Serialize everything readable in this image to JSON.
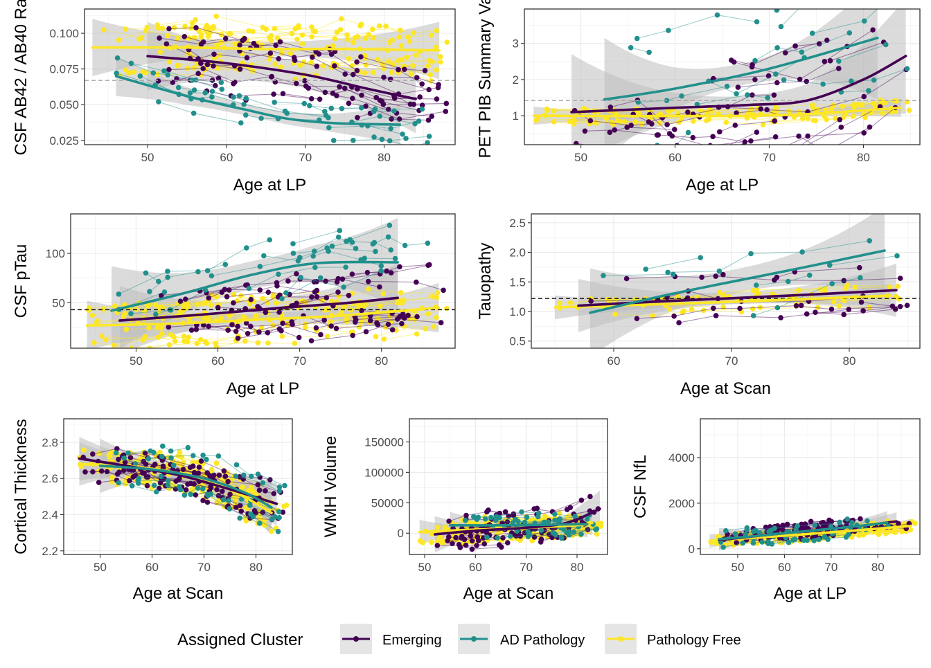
{
  "colors": {
    "Emerging": "#440154",
    "AD Pathology": "#21908C",
    "Pathology Free": "#FDE725",
    "grid": "#ebebeb",
    "ribbon": "#bdbdbd"
  },
  "legend": {
    "title": "Assigned Cluster",
    "items": [
      "Emerging",
      "AD Pathology",
      "Pathology Free"
    ]
  },
  "chart_data": [
    {
      "type": "line",
      "id": "p1",
      "xlabel": "Age at LP",
      "ylabel": "CSF AB42 / AB40 Ra",
      "xlim": [
        42,
        89
      ],
      "ylim": [
        0.022,
        0.117
      ],
      "xticks": [
        50,
        60,
        70,
        80
      ],
      "yticks": [
        0.025,
        0.05,
        0.075,
        0.1
      ],
      "ytick_labels": [
        "0.025",
        "0.050",
        "0.075",
        "0.100"
      ],
      "threshold": 0.067,
      "threshold_style": "grey-dashed",
      "series": [
        {
          "name": "Pathology Free",
          "trend": [
            [
              43,
              0.09
            ],
            [
              55,
              0.09
            ],
            [
              65,
              0.089
            ],
            [
              75,
              0.089
            ],
            [
              87,
              0.088
            ]
          ],
          "spread": [
            0.005,
            0.02
          ]
        },
        {
          "name": "Emerging",
          "trend": [
            [
              50,
              0.084
            ],
            [
              60,
              0.079
            ],
            [
              70,
              0.071
            ],
            [
              78,
              0.061
            ],
            [
              84,
              0.054
            ]
          ],
          "spread": [
            0.009,
            0.024
          ]
        },
        {
          "name": "AD Pathology",
          "trend": [
            [
              46,
              0.07
            ],
            [
              55,
              0.056
            ],
            [
              62,
              0.047
            ],
            [
              68,
              0.04
            ],
            [
              74,
              0.037
            ],
            [
              82,
              0.036
            ]
          ],
          "spread": [
            0.004,
            0.014
          ]
        }
      ]
    },
    {
      "type": "line",
      "id": "p2",
      "xlabel": "Age at LP",
      "ylabel": "PET PIB Summary Va",
      "xlim": [
        44,
        86
      ],
      "ylim": [
        0.2,
        3.95
      ],
      "xticks": [
        50,
        60,
        70,
        80
      ],
      "yticks": [
        1,
        2,
        3
      ],
      "ytick_labels": [
        "1",
        "2",
        "3"
      ],
      "threshold": 1.42,
      "threshold_style": "grey-dashed",
      "series": [
        {
          "name": "Pathology Free",
          "trend": [
            [
              45,
              1.0
            ],
            [
              60,
              0.99
            ],
            [
              72,
              1.02
            ],
            [
              84,
              1.22
            ]
          ],
          "spread": [
            0.04,
            0.25
          ]
        },
        {
          "name": "Emerging",
          "trend": [
            [
              49,
              1.1
            ],
            [
              60,
              1.22
            ],
            [
              68,
              1.3
            ],
            [
              74,
              1.42
            ],
            [
              80,
              2.0
            ],
            [
              84.5,
              2.65
            ]
          ],
          "spread": [
            0.25,
            1.6
          ]
        },
        {
          "name": "AD Pathology",
          "trend": [
            [
              52.5,
              1.45
            ],
            [
              60,
              1.75
            ],
            [
              70,
              2.3
            ],
            [
              81.5,
              3.15
            ]
          ],
          "spread": [
            0.3,
            1.7
          ]
        }
      ]
    },
    {
      "type": "line",
      "id": "p3",
      "xlabel": "Age at LP",
      "ylabel": "CSF pTau",
      "xlim": [
        42,
        89
      ],
      "ylim": [
        4,
        140
      ],
      "xticks": [
        50,
        60,
        70,
        80
      ],
      "yticks": [
        50,
        100
      ],
      "ytick_labels": [
        "50",
        "100"
      ],
      "threshold": 43,
      "threshold_style": "black-dashed",
      "series": [
        {
          "name": "Pathology Free",
          "trend": [
            [
              44,
              27
            ],
            [
              55,
              29
            ],
            [
              65,
              33
            ],
            [
              75,
              37
            ],
            [
              87,
              45
            ]
          ],
          "spread": [
            6,
            25
          ]
        },
        {
          "name": "Emerging",
          "trend": [
            [
              48,
              32
            ],
            [
              58,
              38
            ],
            [
              68,
              45
            ],
            [
              76,
              50
            ],
            [
              82,
              55
            ]
          ],
          "spread": [
            10,
            35
          ]
        },
        {
          "name": "AD Pathology",
          "trend": [
            [
              47,
              42
            ],
            [
              56,
              60
            ],
            [
              64,
              78
            ],
            [
              72,
              90
            ],
            [
              82,
              91
            ]
          ],
          "spread": [
            14,
            45
          ]
        }
      ]
    },
    {
      "type": "line",
      "id": "p4",
      "xlabel": "Age at Scan",
      "ylabel": "Tauopathy",
      "xlim": [
        53,
        86
      ],
      "ylim": [
        0.38,
        2.65
      ],
      "xticks": [
        60,
        70,
        80
      ],
      "yticks": [
        0.5,
        1.0,
        1.5,
        2.0,
        2.5
      ],
      "ytick_labels": [
        "0.5",
        "1.0",
        "1.5",
        "2.0",
        "2.5"
      ],
      "threshold": 1.22,
      "threshold_style": "black-dashed",
      "series": [
        {
          "name": "Pathology Free",
          "trend": [
            [
              55,
              1.07
            ],
            [
              65,
              1.13
            ],
            [
              75,
              1.2
            ],
            [
              83.5,
              1.27
            ]
          ],
          "spread": [
            0.04,
            0.2
          ]
        },
        {
          "name": "Emerging",
          "trend": [
            [
              57,
              1.1
            ],
            [
              65,
              1.18
            ],
            [
              75,
              1.27
            ],
            [
              84,
              1.36
            ]
          ],
          "spread": [
            0.1,
            0.45
          ]
        },
        {
          "name": "AD Pathology",
          "trend": [
            [
              58,
              0.98
            ],
            [
              65,
              1.3
            ],
            [
              75,
              1.7
            ],
            [
              83,
              2.03
            ]
          ],
          "spread": [
            0.2,
            0.75
          ]
        }
      ]
    },
    {
      "type": "line",
      "id": "p5",
      "xlabel": "Age at Scan",
      "ylabel": "Cortical Thickness",
      "xlim": [
        43,
        87
      ],
      "ylim": [
        2.18,
        2.93
      ],
      "xticks": [
        50,
        60,
        70,
        80
      ],
      "yticks": [
        2.2,
        2.4,
        2.6,
        2.8
      ],
      "ytick_labels": [
        "2.2",
        "2.4",
        "2.6",
        "2.8"
      ],
      "series": [
        {
          "name": "Pathology Free",
          "trend": [
            [
              46,
              2.68
            ],
            [
              55,
              2.67
            ],
            [
              65,
              2.63
            ],
            [
              72,
              2.57
            ],
            [
              77,
              2.51
            ],
            [
              83,
              2.41
            ]
          ],
          "spread": [
            0.03,
            0.12
          ]
        },
        {
          "name": "Emerging",
          "trend": [
            [
              46,
              2.71
            ],
            [
              55,
              2.67
            ],
            [
              65,
              2.62
            ],
            [
              75,
              2.54
            ],
            [
              84,
              2.46
            ]
          ],
          "spread": [
            0.04,
            0.12
          ]
        },
        {
          "name": "AD Pathology",
          "trend": [
            [
              50,
              2.67
            ],
            [
              60,
              2.65
            ],
            [
              70,
              2.6
            ],
            [
              78,
              2.52
            ],
            [
              83,
              2.44
            ]
          ],
          "spread": [
            0.05,
            0.15
          ]
        }
      ]
    },
    {
      "type": "line",
      "id": "p6",
      "xlabel": "Age at Scan",
      "ylabel": "WMH Volume",
      "xlim": [
        47,
        86
      ],
      "ylim": [
        -35000,
        188000
      ],
      "xticks": [
        50,
        60,
        70,
        80
      ],
      "yticks": [
        0,
        50000,
        100000,
        150000
      ],
      "ytick_labels": [
        "0",
        "50000",
        "100000",
        "150000"
      ],
      "series": [
        {
          "name": "Pathology Free",
          "trend": [
            [
              49,
              2000
            ],
            [
              60,
              6000
            ],
            [
              70,
              9000
            ],
            [
              80,
              13000
            ],
            [
              83,
              17000
            ]
          ],
          "spread": [
            3000,
            20000
          ]
        },
        {
          "name": "Emerging",
          "trend": [
            [
              52,
              -2000
            ],
            [
              60,
              4000
            ],
            [
              70,
              9000
            ],
            [
              78,
              17000
            ],
            [
              84.5,
              40000
            ]
          ],
          "spread": [
            5000,
            30000
          ]
        },
        {
          "name": "AD Pathology",
          "trend": [
            [
              55,
              13000
            ],
            [
              65,
              13000
            ],
            [
              75,
              14000
            ],
            [
              82,
              15000
            ]
          ],
          "spread": [
            6000,
            22000
          ]
        }
      ]
    },
    {
      "type": "line",
      "id": "p7",
      "xlabel": "Age at LP",
      "ylabel": "CSF NfL",
      "xlim": [
        42,
        89
      ],
      "ylim": [
        -250,
        5700
      ],
      "xticks": [
        50,
        60,
        70,
        80
      ],
      "yticks": [
        0,
        2000,
        4000
      ],
      "ytick_labels": [
        "0",
        "2000",
        "4000"
      ],
      "series": [
        {
          "name": "Pathology Free",
          "trend": [
            [
              44,
              350
            ],
            [
              55,
              500
            ],
            [
              65,
              650
            ],
            [
              75,
              800
            ],
            [
              87,
              1000
            ]
          ],
          "spread": [
            80,
            300
          ]
        },
        {
          "name": "Emerging",
          "trend": [
            [
              46,
              380
            ],
            [
              56,
              600
            ],
            [
              66,
              800
            ],
            [
              76,
              1000
            ],
            [
              84,
              1200
            ]
          ],
          "spread": [
            120,
            400
          ]
        },
        {
          "name": "AD Pathology",
          "trend": [
            [
              46,
              420
            ],
            [
              56,
              600
            ],
            [
              66,
              800
            ],
            [
              76,
              1000
            ],
            [
              82,
              1150
            ]
          ],
          "spread": [
            150,
            500
          ]
        }
      ]
    }
  ]
}
